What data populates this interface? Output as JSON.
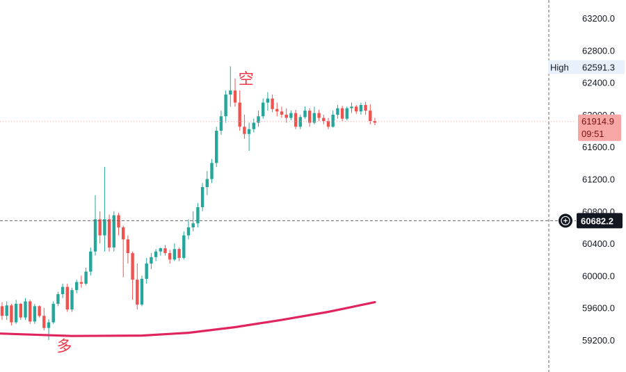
{
  "colors": {
    "up": "#26a69a",
    "down": "#ef5350",
    "ma_line": "#e0245e",
    "price_tag_bg": "#f7a6a6",
    "crosshair_tag_bg": "#131722",
    "high_tag_bg": "#e8f0fb"
  },
  "chart_data": {
    "type": "candlestick",
    "y_axis": {
      "range": [
        59100,
        63350
      ],
      "ticks": [
        "59200.0",
        "59600.0",
        "60000.0",
        "60400.0",
        "60800.0",
        "61200.0",
        "61600.0",
        "62000.0",
        "62400.0",
        "62800.0",
        "63200.0"
      ],
      "tick_values": [
        59200,
        59600,
        60000,
        60400,
        60800,
        61200,
        61600,
        62000,
        62400,
        62800,
        63200
      ],
      "grid": false
    },
    "candles": [
      [
        59620,
        59670,
        59450,
        59500
      ],
      [
        59500,
        59680,
        59450,
        59630
      ],
      [
        59630,
        59650,
        59380,
        59420
      ],
      [
        59420,
        59700,
        59400,
        59650
      ],
      [
        59650,
        59660,
        59450,
        59480
      ],
      [
        59480,
        59720,
        59450,
        59680
      ],
      [
        59680,
        59700,
        59400,
        59430
      ],
      [
        59430,
        59650,
        59400,
        59620
      ],
      [
        59620,
        59630,
        59480,
        59500
      ],
      [
        59500,
        59600,
        59320,
        59350
      ],
      [
        59350,
        59460,
        59200,
        59420
      ],
      [
        59420,
        59680,
        59400,
        59650
      ],
      [
        59650,
        59800,
        59620,
        59770
      ],
      [
        59770,
        59900,
        59720,
        59860
      ],
      [
        59860,
        59900,
        59550,
        59580
      ],
      [
        59580,
        59850,
        59550,
        59820
      ],
      [
        59820,
        59950,
        59780,
        59920
      ],
      [
        59920,
        60000,
        59850,
        59900
      ],
      [
        59900,
        60100,
        59880,
        60050
      ],
      [
        60050,
        60350,
        60000,
        60300
      ],
      [
        60300,
        61000,
        60250,
        60700
      ],
      [
        60700,
        60800,
        60400,
        60500
      ],
      [
        60500,
        61350,
        60300,
        60700
      ],
      [
        60700,
        60760,
        60300,
        60350
      ],
      [
        60350,
        60800,
        60300,
        60750
      ],
      [
        60750,
        60780,
        60500,
        60600
      ],
      [
        60600,
        60620,
        59980,
        60450
      ],
      [
        60450,
        60500,
        60150,
        60280
      ],
      [
        60280,
        60300,
        59700,
        59950
      ],
      [
        59950,
        60150,
        59580,
        59640
      ],
      [
        59640,
        60000,
        59620,
        59960
      ],
      [
        59960,
        60220,
        59900,
        60150
      ],
      [
        60150,
        60280,
        60080,
        60230
      ],
      [
        60230,
        60330,
        60180,
        60300
      ],
      [
        60300,
        60350,
        60250,
        60340
      ],
      [
        60340,
        60380,
        60250,
        60280
      ],
      [
        60280,
        60320,
        60150,
        60200
      ],
      [
        60200,
        60400,
        60180,
        60330
      ],
      [
        60330,
        60350,
        60180,
        60220
      ],
      [
        60220,
        60550,
        60200,
        60500
      ],
      [
        60500,
        60700,
        60450,
        60600
      ],
      [
        60600,
        60800,
        60550,
        60650
      ],
      [
        60650,
        60900,
        60600,
        60850
      ],
      [
        60850,
        61150,
        60800,
        61100
      ],
      [
        61100,
        61300,
        61000,
        61200
      ],
      [
        61200,
        61450,
        61150,
        61400
      ],
      [
        61400,
        61850,
        61350,
        61800
      ],
      [
        61800,
        62050,
        61750,
        61980
      ],
      [
        61980,
        62300,
        61900,
        62250
      ],
      [
        62250,
        62600,
        62100,
        62300
      ],
      [
        62300,
        62450,
        62100,
        62150
      ],
      [
        62150,
        62300,
        61800,
        61850
      ],
      [
        61850,
        62000,
        61700,
        61760
      ],
      [
        61760,
        61900,
        61550,
        61820
      ],
      [
        61820,
        61950,
        61780,
        61900
      ],
      [
        61900,
        62050,
        61850,
        61980
      ],
      [
        61980,
        62200,
        61950,
        62150
      ],
      [
        62150,
        62280,
        62050,
        62200
      ],
      [
        62200,
        62250,
        62030,
        62070
      ],
      [
        62070,
        62150,
        61980,
        62040
      ],
      [
        62040,
        62100,
        61960,
        62000
      ],
      [
        62000,
        62080,
        61900,
        61960
      ],
      [
        61960,
        62050,
        61930,
        62020
      ],
      [
        62020,
        62060,
        61820,
        61850
      ],
      [
        61850,
        62000,
        61820,
        61970
      ],
      [
        61970,
        62100,
        61950,
        62050
      ],
      [
        62050,
        62080,
        61850,
        61900
      ],
      [
        61900,
        62100,
        61880,
        62020
      ],
      [
        62020,
        62060,
        61920,
        61960
      ],
      [
        61960,
        62000,
        61880,
        61920
      ],
      [
        61920,
        61960,
        61820,
        61850
      ],
      [
        61850,
        62050,
        61840,
        62000
      ],
      [
        62000,
        62120,
        61950,
        62080
      ],
      [
        62080,
        62110,
        61920,
        61950
      ],
      [
        61950,
        62100,
        61930,
        62080
      ],
      [
        62080,
        62150,
        62020,
        62100
      ],
      [
        62100,
        62120,
        62010,
        62040
      ],
      [
        62040,
        62150,
        62000,
        62120
      ],
      [
        62120,
        62160,
        62000,
        62050
      ],
      [
        62050,
        62130,
        61880,
        61920
      ],
      [
        61920,
        61960,
        61870,
        61900
      ]
    ],
    "moving_average": {
      "color": "#e0245e",
      "points": [
        [
          0,
          59280
        ],
        [
          15,
          59250
        ],
        [
          30,
          59255
        ],
        [
          40,
          59290
        ],
        [
          50,
          59360
        ],
        [
          60,
          59450
        ],
        [
          70,
          59550
        ],
        [
          80,
          59670
        ]
      ]
    },
    "horizontal_lines": [
      {
        "value": 61914.9,
        "style": "dotted",
        "color": "#f0a0a0"
      },
      {
        "value": 60682.2,
        "style": "dashed",
        "color": "#666666"
      }
    ],
    "vertical_line": {
      "after_index": 80,
      "style": "dashed",
      "color": "#666666"
    }
  },
  "price_tags": {
    "high": {
      "label": "High",
      "value": "62591.3",
      "price": 62591.3
    },
    "current": {
      "value": "61914.9",
      "countdown": "09:51",
      "price": 61914.9
    },
    "crosshair": {
      "value": "60682.2",
      "price": 60682.2
    }
  },
  "annotations": {
    "short": {
      "text": "空",
      "candle": 51,
      "price": 62450
    },
    "long": {
      "text": "多",
      "candle": 12,
      "price": 59160
    }
  }
}
